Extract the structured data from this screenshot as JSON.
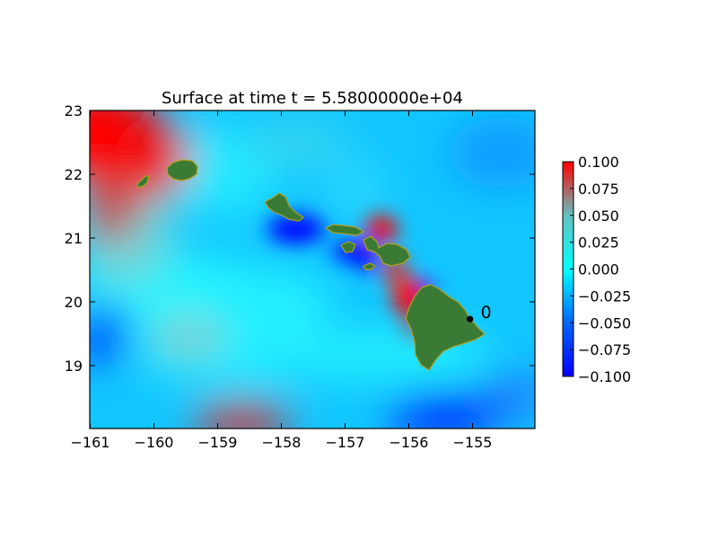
{
  "chart_data": {
    "type": "heatmap",
    "title": "Surface at time t = 5.58000000e+04",
    "xlabel": "",
    "ylabel": "",
    "xlim": [
      -161.0,
      -154.0
    ],
    "ylim": [
      18.0,
      23.0
    ],
    "x_ticks": [
      "−161",
      "−160",
      "−159",
      "−158",
      "−157",
      "−156",
      "−155"
    ],
    "x_tick_values": [
      -161,
      -160,
      -159,
      -158,
      -157,
      -156,
      -155
    ],
    "y_ticks": [
      "19",
      "20",
      "21",
      "22",
      "23"
    ],
    "y_tick_values": [
      19,
      20,
      21,
      22,
      23
    ],
    "colorbar": {
      "range": [
        -0.1,
        0.1
      ],
      "ticks": [
        "0.100",
        "0.075",
        "0.050",
        "0.025",
        "0.000",
        "−0.025",
        "−0.050",
        "−0.075",
        "−0.100"
      ],
      "tick_values": [
        0.1,
        0.075,
        0.05,
        0.025,
        0.0,
        -0.025,
        -0.05,
        -0.075,
        -0.1
      ],
      "colors": [
        "#ff0000",
        "#66c0c0",
        "#00ffff",
        "#0066ff",
        "#0000ff"
      ]
    },
    "land_color": "#3a7a35",
    "gauges": [
      {
        "label": "0",
        "x": -155.04,
        "y": 19.73
      }
    ],
    "grid": false,
    "legend": "colorbar-right"
  }
}
